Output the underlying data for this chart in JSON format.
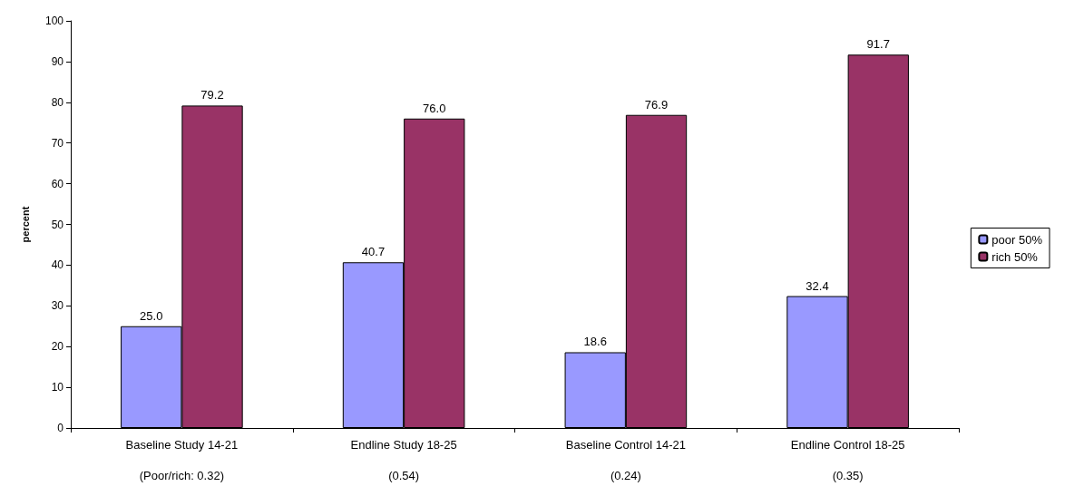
{
  "chart_data": {
    "type": "bar",
    "ylabel": "percent",
    "categories": [
      "Baseline Study 14-21\n\n(Poor/rich: 0.32)",
      "Endline Study 18-25\n\n(0.54)",
      "Baseline Control 14-21\n\n(0.24)",
      "Endline Control 18-25\n\n(0.35)"
    ],
    "series": [
      {
        "name": "poor 50%",
        "color": "#9999ff",
        "values": [
          25.0,
          40.7,
          18.6,
          32.4
        ],
        "value_labels": [
          "25.0",
          "40.7",
          "18.6",
          "32.4"
        ]
      },
      {
        "name": "rich 50%",
        "color": "#993366",
        "values": [
          79.2,
          76.0,
          76.9,
          91.7
        ],
        "value_labels": [
          "79.2",
          "76.0",
          "76.9",
          "91.7"
        ]
      }
    ],
    "ylim": [
      0,
      100
    ],
    "yticks": [
      0,
      10,
      20,
      30,
      40,
      50,
      60,
      70,
      80,
      90,
      100
    ],
    "grid": false,
    "legend": "right"
  }
}
